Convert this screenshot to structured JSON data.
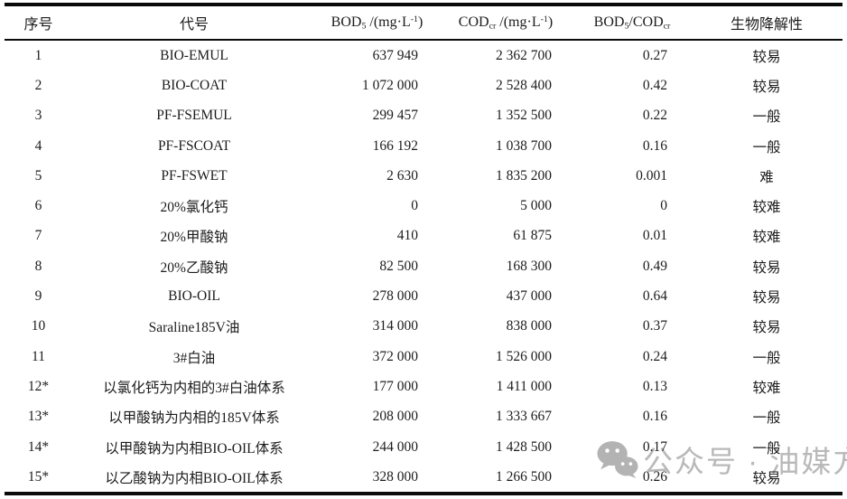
{
  "table": {
    "headers": {
      "index": "序号",
      "code": "代号",
      "bod": {
        "base": "BOD",
        "sub": "5",
        "unit_pre": " /(mg·L",
        "sup": "-1",
        "unit_post": ")"
      },
      "cod": {
        "base": "COD",
        "sub": "cr",
        "unit_pre": " /(mg·L",
        "sup": "-1",
        "unit_post": ")"
      },
      "ratio": {
        "base1": "BOD",
        "sub1": "5",
        "mid": "/COD",
        "sub2": "cr"
      },
      "biodegradability": "生物降解性"
    },
    "rows": [
      {
        "index": "1",
        "code": "BIO-EMUL",
        "bod": "637 949",
        "cod": "2 362 700",
        "ratio": "0.27",
        "bio": "较易"
      },
      {
        "index": "2",
        "code": "BIO-COAT",
        "bod": "1 072 000",
        "cod": "2 528 400",
        "ratio": "0.42",
        "bio": "较易"
      },
      {
        "index": "3",
        "code": "PF-FSEMUL",
        "bod": "299 457",
        "cod": "1 352 500",
        "ratio": "0.22",
        "bio": "一般"
      },
      {
        "index": "4",
        "code": "PF-FSCOAT",
        "bod": "166 192",
        "cod": "1 038 700",
        "ratio": "0.16",
        "bio": "一般"
      },
      {
        "index": "5",
        "code": "PF-FSWET",
        "bod": "2 630",
        "cod": "1 835 200",
        "ratio": "0.001",
        "bio": "难"
      },
      {
        "index": "6",
        "code": "20%氯化钙",
        "bod": "0",
        "cod": "5 000",
        "ratio": "0",
        "bio": "较难"
      },
      {
        "index": "7",
        "code": "20%甲酸钠",
        "bod": "410",
        "cod": "61 875",
        "ratio": "0.01",
        "bio": "较难"
      },
      {
        "index": "8",
        "code": "20%乙酸钠",
        "bod": "82 500",
        "cod": "168 300",
        "ratio": "0.49",
        "bio": "较易"
      },
      {
        "index": "9",
        "code": "BIO-OIL",
        "bod": "278 000",
        "cod": "437 000",
        "ratio": "0.64",
        "bio": "较易"
      },
      {
        "index": "10",
        "code": "Saraline185V油",
        "bod": "314 000",
        "cod": "838 000",
        "ratio": "0.37",
        "bio": "较易"
      },
      {
        "index": "11",
        "code": "3#白油",
        "bod": "372 000",
        "cod": "1 526 000",
        "ratio": "0.24",
        "bio": "一般"
      },
      {
        "index": "12*",
        "code": "以氯化钙为内相的3#白油体系",
        "bod": "177 000",
        "cod": "1 411 000",
        "ratio": "0.13",
        "bio": "较难"
      },
      {
        "index": "13*",
        "code": "以甲酸钠为内相的185V体系",
        "bod": "208 000",
        "cod": "1 333 667",
        "ratio": "0.16",
        "bio": "一般"
      },
      {
        "index": "14*",
        "code": "以甲酸钠为内相BIO-OIL体系",
        "bod": "244 000",
        "cod": "1 428 500",
        "ratio": "0.17",
        "bio": "一般"
      },
      {
        "index": "15*",
        "code": "以乙酸钠为内相BIO-OIL体系",
        "bod": "328 000",
        "cod": "1 266 500",
        "ratio": "0.26",
        "bio": "较易"
      }
    ]
  },
  "watermark": {
    "icon": "wechat-icon",
    "text": "公众号 · 油媒方",
    "color": "#b9b9b9"
  },
  "colors": {
    "text": "#1c1c1c",
    "border": "#0a0a0a",
    "background": "#ffffff"
  }
}
